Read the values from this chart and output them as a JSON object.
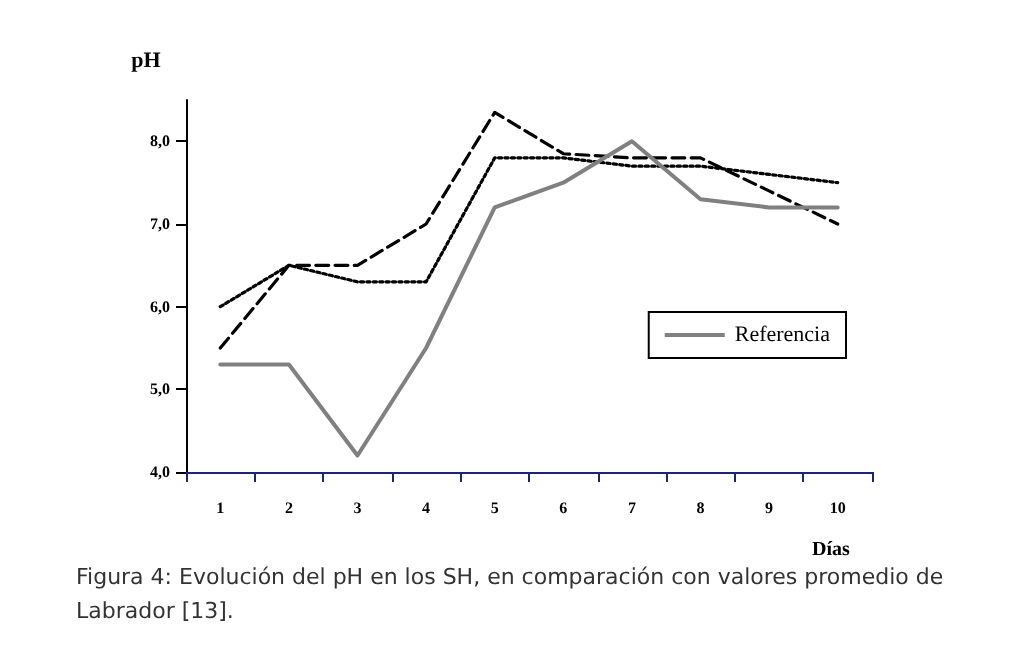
{
  "chart_data": {
    "type": "line",
    "ylabel": "pH",
    "xlabel": "Días",
    "categories": [
      "1",
      "2",
      "3",
      "4",
      "5",
      "6",
      "7",
      "8",
      "9",
      "10"
    ],
    "series": [
      {
        "color": "#000000",
        "line_style": "dashed",
        "values": [
          5.5,
          6.5,
          6.5,
          7.0,
          8.35,
          7.85,
          7.8,
          7.8,
          7.4,
          7.0
        ]
      },
      {
        "color": "#000000",
        "line_style": "dotted",
        "values": [
          6.0,
          6.5,
          6.3,
          6.3,
          7.8,
          7.8,
          7.7,
          7.7,
          7.6,
          7.5
        ]
      },
      {
        "name": "Referencia",
        "color": "#808080",
        "line_style": "solid",
        "values": [
          5.3,
          5.3,
          4.2,
          5.5,
          7.2,
          7.5,
          8.0,
          7.3,
          7.2,
          7.2
        ]
      }
    ],
    "ylim": [
      4,
      8.5
    ],
    "yticks": [
      {
        "value": 4,
        "label": "4,0"
      },
      {
        "value": 5,
        "label": "5,0"
      },
      {
        "value": 6,
        "label": "6,0"
      },
      {
        "value": 7,
        "label": "7,0"
      },
      {
        "value": 8,
        "label": "8,0"
      }
    ],
    "grid": false,
    "legend": "right",
    "marker": "none",
    "annotations": [
      "Figura 4: Evolución del pH en los SH, en comparación con valores promedio de Labrador [13]."
    ]
  }
}
